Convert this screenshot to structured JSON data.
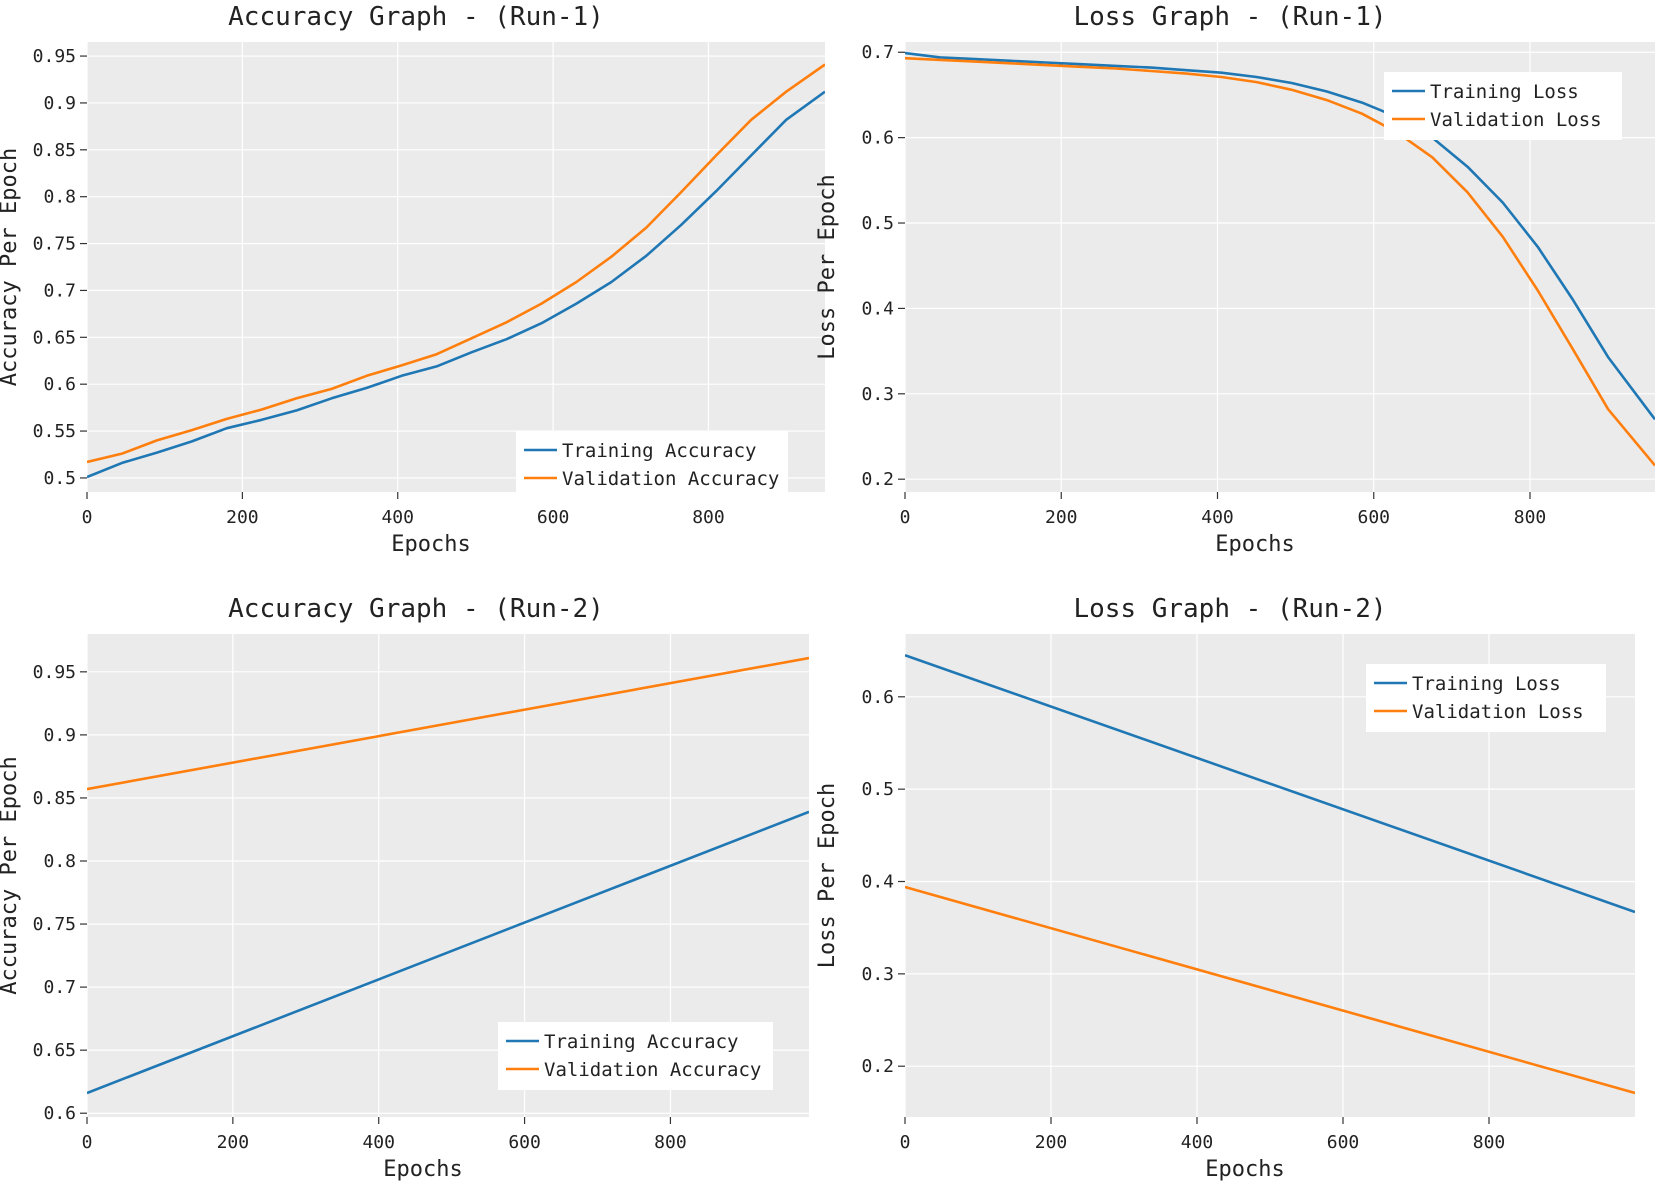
{
  "chart_data": [
    {
      "type": "line",
      "id": "acc1",
      "title": "Accuracy Graph - (Run-1)",
      "xlabel": "Epochs",
      "ylabel": "Accuracy Per Epoch",
      "xlim": [
        0,
        950
      ],
      "ylim": [
        0.485,
        0.965
      ],
      "xticks": [
        0,
        200,
        400,
        600,
        800
      ],
      "xtick_labels": [
        "0",
        "200",
        "400",
        "600",
        "800"
      ],
      "yticks": [
        0.5,
        0.55,
        0.6,
        0.65,
        0.7,
        0.75,
        0.8,
        0.85,
        0.9,
        0.95
      ],
      "ytick_labels": [
        "0.5",
        "0.55",
        "0.6",
        "0.65",
        "0.7",
        "0.75",
        "0.8",
        "0.85",
        "0.9",
        "0.95"
      ],
      "grid": true,
      "legend_position": "lower-right",
      "series": [
        {
          "name": "Training Accuracy",
          "color": "#1f77b4",
          "x": [
            0,
            45,
            90,
            135,
            180,
            225,
            270,
            315,
            360,
            405,
            450,
            495,
            540,
            585,
            630,
            675,
            720,
            765,
            810,
            855,
            900,
            950
          ],
          "y": [
            0.501,
            0.516,
            0.527,
            0.539,
            0.553,
            0.562,
            0.572,
            0.585,
            0.596,
            0.609,
            0.619,
            0.634,
            0.648,
            0.665,
            0.686,
            0.709,
            0.737,
            0.77,
            0.806,
            0.844,
            0.882,
            0.912
          ]
        },
        {
          "name": "Validation Accuracy",
          "color": "#ff7f0e",
          "x": [
            0,
            45,
            90,
            135,
            180,
            225,
            270,
            315,
            360,
            405,
            450,
            495,
            540,
            585,
            630,
            675,
            720,
            765,
            810,
            855,
            900,
            950
          ],
          "y": [
            0.517,
            0.526,
            0.54,
            0.551,
            0.563,
            0.573,
            0.585,
            0.595,
            0.609,
            0.62,
            0.632,
            0.649,
            0.666,
            0.686,
            0.709,
            0.736,
            0.767,
            0.805,
            0.844,
            0.882,
            0.912,
            0.941
          ]
        }
      ]
    },
    {
      "type": "line",
      "id": "loss1",
      "title": "Loss Graph - (Run-1)",
      "xlabel": "Epochs",
      "ylabel": "Loss Per Epoch",
      "xlim": [
        0,
        960
      ],
      "ylim": [
        0.185,
        0.712
      ],
      "xticks": [
        0,
        200,
        400,
        600,
        800
      ],
      "xtick_labels": [
        "0",
        "200",
        "400",
        "600",
        "800"
      ],
      "yticks": [
        0.2,
        0.3,
        0.4,
        0.5,
        0.6,
        0.7
      ],
      "ytick_labels": [
        "0.2",
        "0.3",
        "0.4",
        "0.5",
        "0.6",
        "0.7"
      ],
      "grid": true,
      "legend_position": "top-right",
      "series": [
        {
          "name": "Training Loss",
          "color": "#1f77b4",
          "x": [
            0,
            45,
            90,
            135,
            180,
            225,
            270,
            315,
            360,
            405,
            450,
            495,
            540,
            585,
            630,
            675,
            720,
            765,
            810,
            855,
            900,
            960
          ],
          "y": [
            0.699,
            0.694,
            0.692,
            0.69,
            0.688,
            0.686,
            0.684,
            0.682,
            0.679,
            0.676,
            0.671,
            0.664,
            0.654,
            0.641,
            0.624,
            0.6,
            0.566,
            0.524,
            0.472,
            0.41,
            0.343,
            0.27
          ]
        },
        {
          "name": "Validation Loss",
          "color": "#ff7f0e",
          "x": [
            0,
            45,
            90,
            135,
            180,
            225,
            270,
            315,
            360,
            405,
            450,
            495,
            540,
            585,
            630,
            675,
            720,
            765,
            810,
            855,
            900,
            960
          ],
          "y": [
            0.693,
            0.691,
            0.689,
            0.687,
            0.685,
            0.683,
            0.681,
            0.678,
            0.675,
            0.671,
            0.665,
            0.656,
            0.644,
            0.628,
            0.606,
            0.577,
            0.536,
            0.484,
            0.421,
            0.352,
            0.282,
            0.216
          ]
        }
      ]
    },
    {
      "type": "line",
      "id": "acc2",
      "title": "Accuracy Graph - (Run-2)",
      "xlabel": "Epochs",
      "ylabel": "Accuracy Per Epoch",
      "xlim": [
        0,
        990
      ],
      "ylim": [
        0.597,
        0.98
      ],
      "xticks": [
        0,
        200,
        400,
        600,
        800
      ],
      "xtick_labels": [
        "0",
        "200",
        "400",
        "600",
        "800"
      ],
      "yticks": [
        0.6,
        0.65,
        0.7,
        0.75,
        0.8,
        0.85,
        0.9,
        0.95
      ],
      "ytick_labels": [
        "0.6",
        "0.65",
        "0.7",
        "0.75",
        "0.8",
        "0.85",
        "0.9",
        "0.95"
      ],
      "grid": true,
      "legend_position": "lower-right",
      "series": [
        {
          "name": "Training Accuracy",
          "color": "#1f77b4",
          "x": [
            0,
            990
          ],
          "y": [
            0.616,
            0.839
          ]
        },
        {
          "name": "Validation Accuracy",
          "color": "#ff7f0e",
          "x": [
            0,
            990
          ],
          "y": [
            0.857,
            0.961
          ]
        }
      ]
    },
    {
      "type": "line",
      "id": "loss2",
      "title": "Loss Graph - (Run-2)",
      "xlabel": "Epochs",
      "ylabel": "Loss Per Epoch",
      "xlim": [
        0,
        1000
      ],
      "ylim": [
        0.145,
        0.668
      ],
      "xticks": [
        0,
        200,
        400,
        600,
        800
      ],
      "xtick_labels": [
        "0",
        "200",
        "400",
        "600",
        "800"
      ],
      "yticks": [
        0.2,
        0.3,
        0.4,
        0.5,
        0.6
      ],
      "ytick_labels": [
        "0.2",
        "0.3",
        "0.4",
        "0.5",
        "0.6"
      ],
      "grid": true,
      "legend_position": "top-right",
      "series": [
        {
          "name": "Training Loss",
          "color": "#1f77b4",
          "x": [
            0,
            1000
          ],
          "y": [
            0.645,
            0.367
          ]
        },
        {
          "name": "Validation Loss",
          "color": "#ff7f0e",
          "x": [
            0,
            1000
          ],
          "y": [
            0.394,
            0.171
          ]
        }
      ]
    }
  ]
}
